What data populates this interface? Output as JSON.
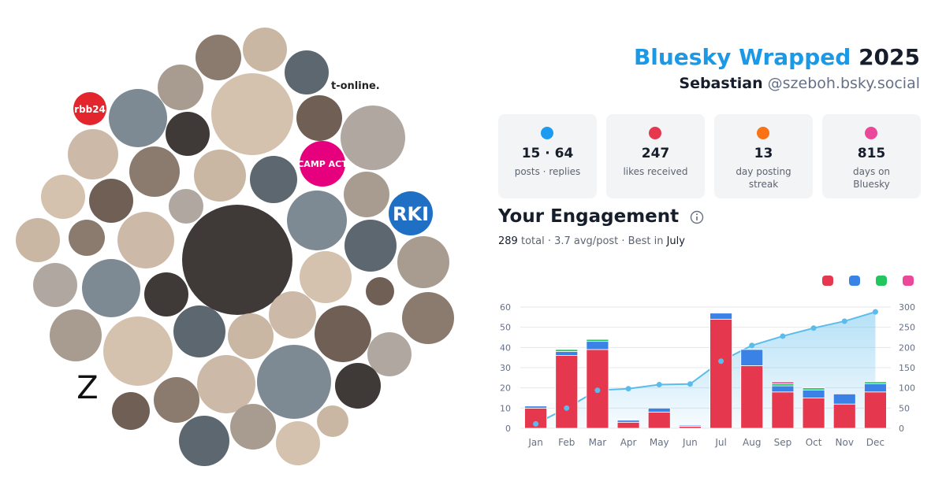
{
  "header": {
    "title": "Bluesky Wrapped",
    "year": "2025",
    "name": "Sebastian",
    "handle": "@szeboh.bsky.social"
  },
  "avatar_labels": {
    "rbb": "rbb24",
    "tonline": "t-online.",
    "campact": "CAMP ACT",
    "rki": "RKI",
    "zeit": "Z"
  },
  "stats": [
    {
      "value": "15 · 64",
      "label": "posts · replies"
    },
    {
      "value": "247",
      "label": "likes received"
    },
    {
      "value": "13",
      "label": "day posting streak"
    },
    {
      "value": "815",
      "label": "days on Bluesky"
    }
  ],
  "engagement": {
    "title": "Your Engagement",
    "total": "289",
    "summary": "total · 3.7 avg/post · Best in",
    "best": "July"
  },
  "chart_data": {
    "type": "bar",
    "stacked": true,
    "grid": true,
    "categories": [
      "Jan",
      "Feb",
      "Mar",
      "Apr",
      "May",
      "Jun",
      "Jul",
      "Aug",
      "Sep",
      "Oct",
      "Nov",
      "Dec"
    ],
    "series": [
      {
        "color": "#e5384f",
        "values": [
          10,
          36,
          39,
          3,
          8,
          1,
          54,
          31,
          18,
          15,
          12,
          18
        ]
      },
      {
        "color": "#3b82e6",
        "values": [
          1,
          2,
          4,
          1,
          2,
          0.5,
          3,
          8,
          3,
          4,
          5,
          4
        ]
      },
      {
        "color": "#22c55e",
        "values": [
          0,
          1,
          1,
          0,
          0,
          0,
          0,
          0,
          1,
          1,
          0,
          1
        ]
      },
      {
        "color": "#ec4899",
        "values": [
          0,
          0,
          0,
          0,
          0,
          0,
          0,
          0,
          1,
          0,
          0,
          0
        ]
      },
      {
        "type": "line",
        "axis": "y2",
        "color": "#5bbcec",
        "values": [
          11,
          50,
          94,
          98,
          108,
          109.5,
          166,
          205,
          228,
          248,
          265,
          288
        ]
      }
    ],
    "ylim": [
      0,
      60
    ],
    "yticks": [
      0,
      10,
      20,
      30,
      40,
      50,
      60
    ],
    "y2lim": [
      0,
      300
    ],
    "y2ticks": [
      0,
      50,
      100,
      150,
      200,
      250,
      300
    ]
  }
}
